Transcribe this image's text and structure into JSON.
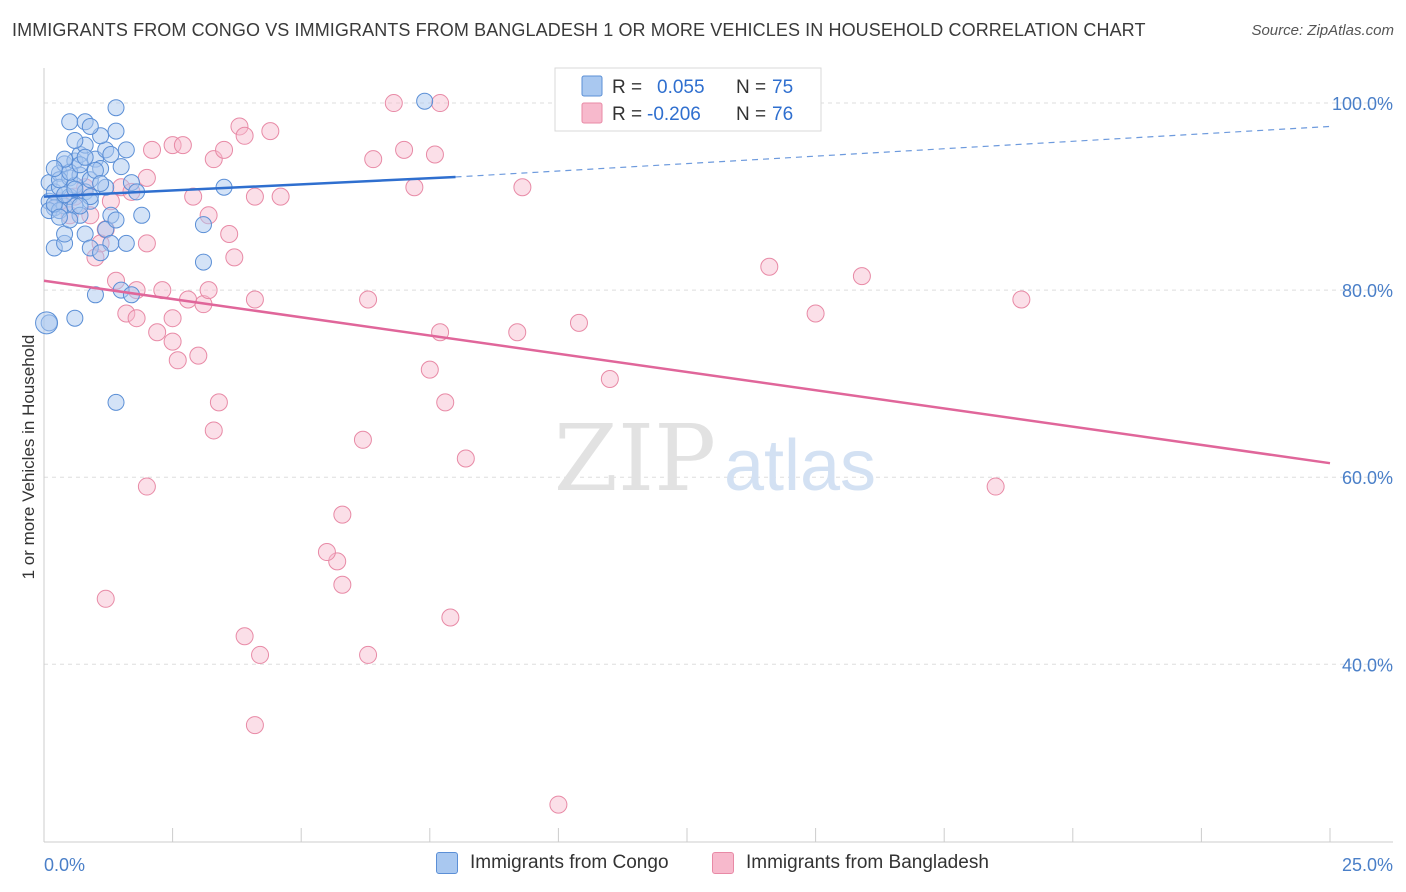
{
  "header": {
    "title": "IMMIGRANTS FROM CONGO VS IMMIGRANTS FROM BANGLADESH 1 OR MORE VEHICLES IN HOUSEHOLD CORRELATION CHART",
    "source": "Source: ZipAtlas.com"
  },
  "watermark": {
    "zip": "ZIP",
    "atlas": "atlas"
  },
  "legend": {
    "rows": [
      {
        "r_label": "R =",
        "r_value": "0.055",
        "n_label": "N =",
        "n_value": "75"
      },
      {
        "r_label": "R =",
        "r_value": "-0.206",
        "n_label": "N =",
        "n_value": "76"
      }
    ]
  },
  "bottom_legend": {
    "congo": "Immigrants from Congo",
    "bangladesh": "Immigrants from Bangladesh"
  },
  "colors": {
    "congo_fill": "#a9c8f0",
    "congo_stroke": "#5b8fd6",
    "congo_line": "#2f6fcf",
    "bangladesh_fill": "#f7b9cc",
    "bangladesh_stroke": "#e88aa6",
    "bangladesh_line": "#e0669a",
    "tick_text": "#4a7fc8",
    "grid": "#dddddd"
  },
  "chart_data": {
    "type": "scatter",
    "title": "IMMIGRANTS FROM CONGO VS IMMIGRANTS FROM BANGLADESH 1 OR MORE VEHICLES IN HOUSEHOLD CORRELATION CHART",
    "xlabel": "",
    "ylabel": "1 or more Vehicles in Household",
    "xlim": [
      0,
      25
    ],
    "ylim": [
      21,
      103
    ],
    "x_tick_labels": [
      "0.0%",
      "25.0%"
    ],
    "y_tick_labels": [
      "100.0%",
      "80.0%",
      "60.0%",
      "40.0%"
    ],
    "y_ticks": [
      100,
      80,
      60,
      40
    ],
    "grid": true,
    "legend_position": "top-center",
    "series": [
      {
        "name": "Immigrants from Congo",
        "trend": {
          "x": [
            0,
            8.0
          ],
          "y": [
            90.0,
            92.1
          ],
          "dashed_to": [
            25,
            97.5
          ]
        },
        "points": [
          [
            0.1,
            91.5
          ],
          [
            0.1,
            89.5
          ],
          [
            0.2,
            90.5
          ],
          [
            0.2,
            88.8
          ],
          [
            0.3,
            92.5
          ],
          [
            0.3,
            91.0
          ],
          [
            0.4,
            93.5
          ],
          [
            0.4,
            89.0
          ],
          [
            0.5,
            92.0
          ],
          [
            0.5,
            90.0
          ],
          [
            0.6,
            93.8
          ],
          [
            0.6,
            91.2
          ],
          [
            0.7,
            94.5
          ],
          [
            0.7,
            92.3
          ],
          [
            0.8,
            95.5
          ],
          [
            0.8,
            90.5
          ],
          [
            0.9,
            91.8
          ],
          [
            0.9,
            89.5
          ],
          [
            1.0,
            94.0
          ],
          [
            1.1,
            93.0
          ],
          [
            1.2,
            95.0
          ],
          [
            1.2,
            91.0
          ],
          [
            1.3,
            94.5
          ],
          [
            1.5,
            93.2
          ],
          [
            1.4,
            97.0
          ],
          [
            1.3,
            88.0
          ],
          [
            1.2,
            86.5
          ],
          [
            1.3,
            85.0
          ],
          [
            1.4,
            87.5
          ],
          [
            1.6,
            85.0
          ],
          [
            1.7,
            91.5
          ],
          [
            1.8,
            90.5
          ],
          [
            1.9,
            88.0
          ],
          [
            0.5,
            98.0
          ],
          [
            0.8,
            98.0
          ],
          [
            1.4,
            99.5
          ],
          [
            1.1,
            96.5
          ],
          [
            0.9,
            97.5
          ],
          [
            0.6,
            96.0
          ],
          [
            1.6,
            95.0
          ],
          [
            0.2,
            84.5
          ],
          [
            0.4,
            85.0
          ],
          [
            0.4,
            86.0
          ],
          [
            0.1,
            88.5
          ],
          [
            0.3,
            88.5
          ],
          [
            0.6,
            89.0
          ],
          [
            0.7,
            88.0
          ],
          [
            0.5,
            87.5
          ],
          [
            0.8,
            86.0
          ],
          [
            0.9,
            84.5
          ],
          [
            1.1,
            84.0
          ],
          [
            1.5,
            80.0
          ],
          [
            1.7,
            79.5
          ],
          [
            1.0,
            79.5
          ],
          [
            0.6,
            77.0
          ],
          [
            1.4,
            68.0
          ],
          [
            0.1,
            76.5
          ],
          [
            3.5,
            91.0
          ],
          [
            3.1,
            87.0
          ],
          [
            3.1,
            83.0
          ],
          [
            0.3,
            91.8
          ],
          [
            0.2,
            89.2
          ],
          [
            0.4,
            90.2
          ],
          [
            0.5,
            92.6
          ],
          [
            0.7,
            93.4
          ],
          [
            0.8,
            94.2
          ],
          [
            1.0,
            92.8
          ],
          [
            1.1,
            91.4
          ],
          [
            0.3,
            87.8
          ],
          [
            0.6,
            90.8
          ],
          [
            0.9,
            90.0
          ],
          [
            0.4,
            94.0
          ],
          [
            0.2,
            93.0
          ],
          [
            0.7,
            89.0
          ],
          [
            7.4,
            100.2
          ]
        ]
      },
      {
        "name": "Immigrants from Bangladesh",
        "trend": {
          "x": [
            0,
            25
          ],
          "y": [
            81.0,
            61.5
          ]
        },
        "points": [
          [
            0.3,
            89.5
          ],
          [
            0.5,
            88.0
          ],
          [
            0.8,
            91.0
          ],
          [
            1.0,
            83.5
          ],
          [
            1.1,
            85.0
          ],
          [
            1.3,
            89.5
          ],
          [
            1.5,
            91.0
          ],
          [
            1.7,
            90.5
          ],
          [
            2.0,
            92.0
          ],
          [
            2.1,
            95.0
          ],
          [
            2.5,
            95.5
          ],
          [
            2.7,
            95.5
          ],
          [
            2.9,
            90.0
          ],
          [
            3.2,
            88.0
          ],
          [
            3.3,
            94.0
          ],
          [
            3.5,
            95.0
          ],
          [
            3.8,
            97.5
          ],
          [
            3.9,
            96.5
          ],
          [
            4.4,
            97.0
          ],
          [
            4.6,
            90.0
          ],
          [
            6.4,
            94.0
          ],
          [
            6.8,
            100.0
          ],
          [
            7.0,
            95.0
          ],
          [
            7.2,
            91.0
          ],
          [
            7.7,
            100.0
          ],
          [
            7.6,
            94.5
          ],
          [
            9.3,
            91.0
          ],
          [
            1.8,
            80.0
          ],
          [
            1.6,
            77.5
          ],
          [
            1.8,
            77.0
          ],
          [
            2.2,
            75.5
          ],
          [
            2.3,
            80.0
          ],
          [
            2.5,
            77.0
          ],
          [
            2.5,
            74.5
          ],
          [
            2.6,
            72.5
          ],
          [
            3.0,
            73.0
          ],
          [
            3.1,
            78.5
          ],
          [
            3.2,
            80.0
          ],
          [
            3.7,
            83.5
          ],
          [
            3.4,
            68.0
          ],
          [
            3.3,
            65.0
          ],
          [
            4.1,
            79.0
          ],
          [
            4.1,
            90.0
          ],
          [
            6.3,
            79.0
          ],
          [
            6.2,
            64.0
          ],
          [
            7.5,
            71.5
          ],
          [
            7.7,
            75.5
          ],
          [
            7.8,
            68.0
          ],
          [
            8.2,
            62.0
          ],
          [
            9.2,
            75.5
          ],
          [
            10.4,
            76.5
          ],
          [
            11.0,
            70.5
          ],
          [
            14.1,
            82.5
          ],
          [
            15.0,
            77.5
          ],
          [
            15.9,
            81.5
          ],
          [
            19.0,
            79.0
          ],
          [
            18.5,
            59.0
          ],
          [
            2.0,
            59.0
          ],
          [
            1.2,
            47.0
          ],
          [
            5.7,
            51.0
          ],
          [
            5.5,
            52.0
          ],
          [
            5.8,
            56.0
          ],
          [
            5.8,
            48.5
          ],
          [
            3.9,
            43.0
          ],
          [
            4.2,
            41.0
          ],
          [
            6.3,
            41.0
          ],
          [
            7.9,
            45.0
          ],
          [
            4.1,
            33.5
          ],
          [
            10.0,
            25.0
          ],
          [
            0.9,
            88.0
          ],
          [
            0.6,
            90.0
          ],
          [
            1.2,
            86.5
          ],
          [
            1.4,
            81.0
          ],
          [
            2.0,
            85.0
          ],
          [
            2.8,
            79.0
          ],
          [
            3.6,
            86.0
          ]
        ]
      }
    ]
  }
}
